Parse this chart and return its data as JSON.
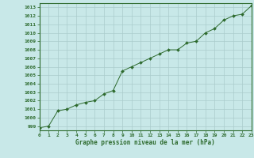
{
  "x": [
    0,
    1,
    2,
    3,
    4,
    5,
    6,
    7,
    8,
    9,
    10,
    11,
    12,
    13,
    14,
    15,
    16,
    17,
    18,
    19,
    20,
    21,
    22,
    23
  ],
  "y": [
    998.8,
    999.0,
    1000.8,
    1001.0,
    1001.5,
    1001.8,
    1002.0,
    1002.8,
    1003.2,
    1005.5,
    1006.0,
    1006.5,
    1007.0,
    1007.5,
    1008.0,
    1008.0,
    1008.8,
    1009.0,
    1010.0,
    1010.5,
    1011.5,
    1012.0,
    1012.2,
    1013.2
  ],
  "line_color": "#2d6a2d",
  "marker_color": "#2d6a2d",
  "bg_color": "#c8e8e8",
  "grid_color": "#aacccc",
  "xlabel": "Graphe pression niveau de la mer (hPa)",
  "xlabel_color": "#2d6a2d",
  "tick_color": "#2d6a2d",
  "ylim": [
    998.5,
    1013.5
  ],
  "xlim": [
    0,
    23
  ],
  "yticks": [
    999,
    1000,
    1001,
    1002,
    1003,
    1004,
    1005,
    1006,
    1007,
    1008,
    1009,
    1010,
    1011,
    1012,
    1013
  ],
  "xticks": [
    0,
    1,
    2,
    3,
    4,
    5,
    6,
    7,
    8,
    9,
    10,
    11,
    12,
    13,
    14,
    15,
    16,
    17,
    18,
    19,
    20,
    21,
    22,
    23
  ]
}
